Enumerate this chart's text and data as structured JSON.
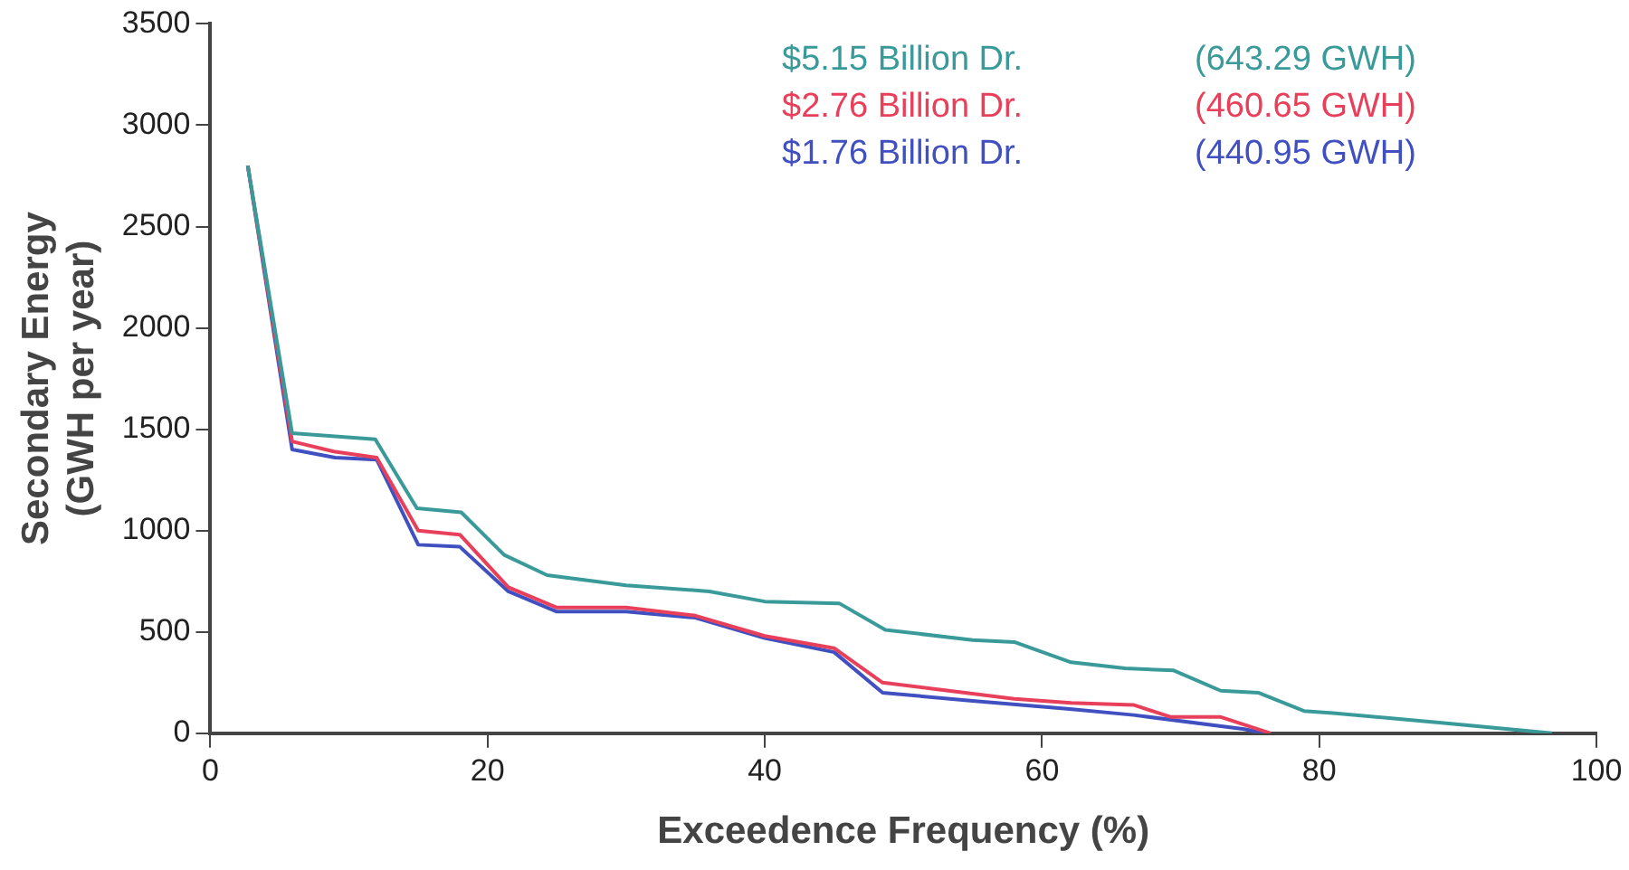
{
  "chart_data": {
    "type": "line",
    "xlabel": "Exceedence Frequency (%)",
    "ylabel": "Secondary Energy\n(GWH per year)",
    "xlim": [
      0,
      100
    ],
    "xticks": [
      0,
      20,
      40,
      60,
      80,
      100
    ],
    "ylim": [
      0,
      3500
    ],
    "yticks": [
      0,
      500,
      1000,
      1500,
      2000,
      2500,
      3000,
      3500
    ],
    "grid": false,
    "marker": "none",
    "line_style": "solid",
    "series": [
      {
        "name": "$5.15 Billion Dr.    (643.29 GWH)",
        "color": "#3a9a9a",
        "x": [
          2.7,
          5.9,
          11.9,
          14.9,
          18.1,
          21.2,
          24.3,
          30,
          36,
          40,
          45.4,
          48.7,
          55,
          58,
          62.1,
          66,
          69.5,
          72.9,
          75.6,
          78.9,
          81,
          89,
          96.8
        ],
        "values": [
          2800,
          1480,
          1450,
          1110,
          1090,
          880,
          780,
          730,
          700,
          650,
          640,
          510,
          460,
          450,
          350,
          320,
          310,
          210,
          200,
          110,
          100,
          50,
          0
        ]
      },
      {
        "name": "$2.76 Billion Dr.    (460.65 GWH)",
        "color": "#e8405a",
        "x": [
          2.7,
          5.9,
          8.9,
          12,
          15,
          18,
          21.5,
          25,
          30,
          35,
          40,
          45,
          48.5,
          58,
          62.1,
          66.6,
          69.3,
          72.9,
          76.5
        ],
        "values": [
          2800,
          1440,
          1390,
          1360,
          1000,
          980,
          720,
          620,
          620,
          580,
          480,
          420,
          250,
          170,
          150,
          140,
          80,
          80,
          0
        ]
      },
      {
        "name": "$1.76 Billion Dr.    (440.95 GWH)",
        "color": "#4050c0",
        "x": [
          2.7,
          5.9,
          9,
          12,
          15,
          18,
          21.5,
          25,
          30,
          35,
          40,
          45,
          48.5,
          55,
          62,
          66.6,
          74.6,
          76
        ],
        "values": [
          2800,
          1400,
          1360,
          1350,
          930,
          920,
          700,
          600,
          600,
          570,
          470,
          400,
          200,
          160,
          120,
          90,
          20,
          0
        ]
      }
    ]
  }
}
